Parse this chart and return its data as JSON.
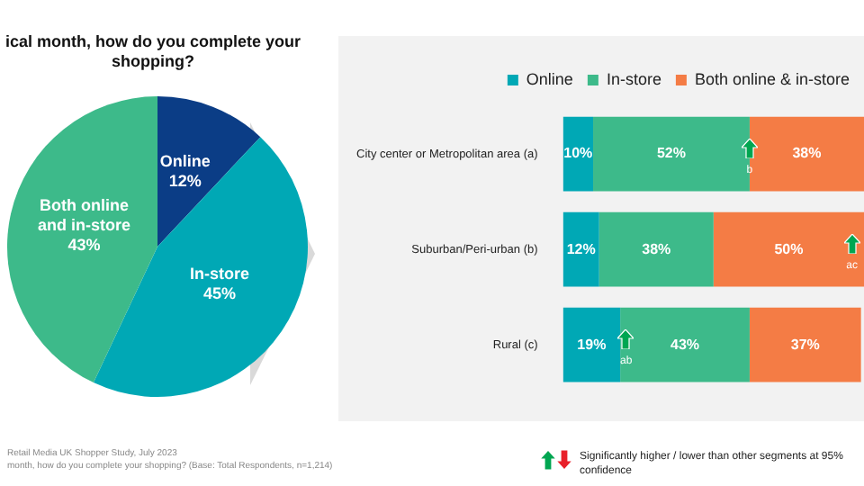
{
  "chart_data": [
    {
      "type": "pie",
      "title": "ical month, how do you complete your shopping?",
      "categories": [
        "Online",
        "In-store",
        "Both online and in-store"
      ],
      "values": [
        12,
        45,
        43
      ],
      "value_labels": [
        "12%",
        "45%",
        "43%"
      ],
      "colors": [
        "#0b3d86",
        "#00a8b5",
        "#3dba8a"
      ],
      "legend": false,
      "annotations": [
        "Retail Media UK Shopper Study, July 2023",
        "month, how do you complete your shopping? (Base: Total Respondents, n=1,214)"
      ]
    },
    {
      "type": "bar",
      "orientation": "horizontal",
      "stacked": true,
      "tick_labels": "y",
      "grid": false,
      "legend": "top",
      "categories": [
        "City center or Metropolitan area (a)",
        "Suburban/Peri-urban (b)",
        "Rural (c)"
      ],
      "series": [
        {
          "name": "Online",
          "color": "#00a8b5",
          "values": [
            10,
            12,
            19
          ],
          "value_labels": [
            "10%",
            "12%",
            "19%"
          ]
        },
        {
          "name": "In-store",
          "color": "#3dba8a",
          "values": [
            52,
            38,
            43
          ],
          "value_labels": [
            "52%",
            "38%",
            "43%"
          ]
        },
        {
          "name": "Both online & in-store",
          "color": "#f47c45",
          "values": [
            38,
            50,
            37
          ],
          "value_labels": [
            "38%",
            "50%",
            "37%"
          ]
        }
      ],
      "annotations": [
        {
          "text": "b",
          "x": 62,
          "y": "City center or Metropolitan area (a)"
        },
        {
          "text": "ac",
          "x": 96,
          "y": "Suburban/Peri-urban (b)"
        },
        {
          "text": "ab",
          "x": 21,
          "y": "Rural (c)"
        },
        "Significantly higher / lower than other segments at 95% confidence"
      ]
    }
  ]
}
